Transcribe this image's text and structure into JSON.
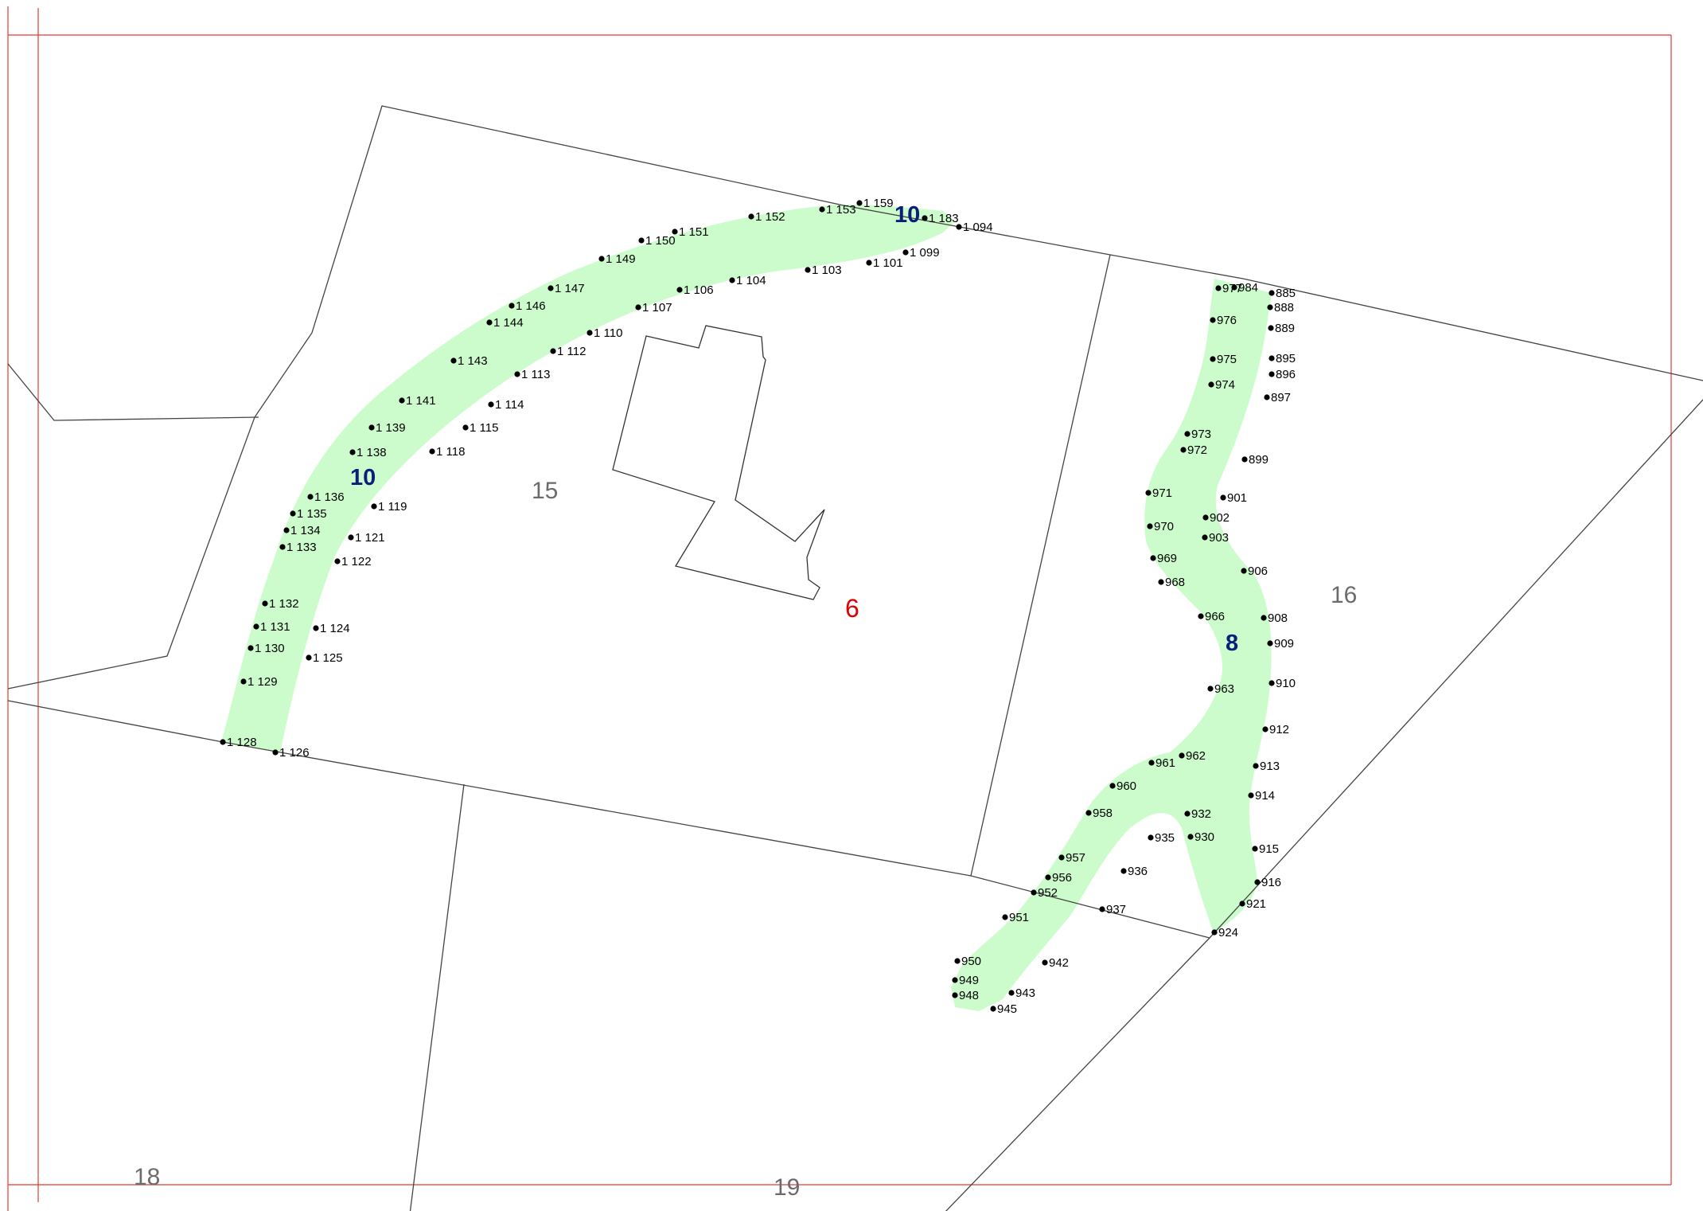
{
  "colors": {
    "strip_fill": "#ccfccc",
    "parcel_line": "#444444",
    "frame_line": "#e53935",
    "parcel_number": "#6b6b6b",
    "strip_number": "#0b1f7a",
    "building_number": "#e00000",
    "point": "#000000"
  },
  "parcel_numbers": [
    "15",
    "16",
    "18",
    "19"
  ],
  "building_number": "6",
  "strip_numbers": [
    "10",
    "10",
    "8"
  ],
  "points_left": [
    "1 128",
    "1 126",
    "1 129",
    "1 130",
    "1 125",
    "1 131",
    "1 124",
    "1 132",
    "1 122",
    "1 133",
    "1 121",
    "1 134",
    "1 135",
    "1 119",
    "1 136",
    "1 138",
    "1 118",
    "1 139",
    "1 115",
    "1 141",
    "1 114",
    "1 143",
    "1 113",
    "1 144",
    "1 112",
    "1 146",
    "1 110",
    "1 147",
    "1 107",
    "1 106",
    "1 149",
    "1 104",
    "1 150",
    "1 151",
    "1 103",
    "1 101",
    "1 099",
    "1 152",
    "1 153",
    "1 159",
    "1 183",
    "1 094"
  ],
  "points_right": [
    "977",
    "984",
    "885",
    "888",
    "889",
    "976",
    "895",
    "975",
    "896",
    "974",
    "897",
    "973",
    "972",
    "899",
    "971",
    "901",
    "970",
    "902",
    "903",
    "969",
    "906",
    "968",
    "966",
    "908",
    "909",
    "963",
    "910",
    "912",
    "961",
    "962",
    "913",
    "960",
    "914",
    "958",
    "932",
    "935",
    "930",
    "957",
    "915",
    "936",
    "956",
    "952",
    "916",
    "937",
    "921",
    "951",
    "924",
    "950",
    "942",
    "949",
    "948",
    "943",
    "945"
  ]
}
